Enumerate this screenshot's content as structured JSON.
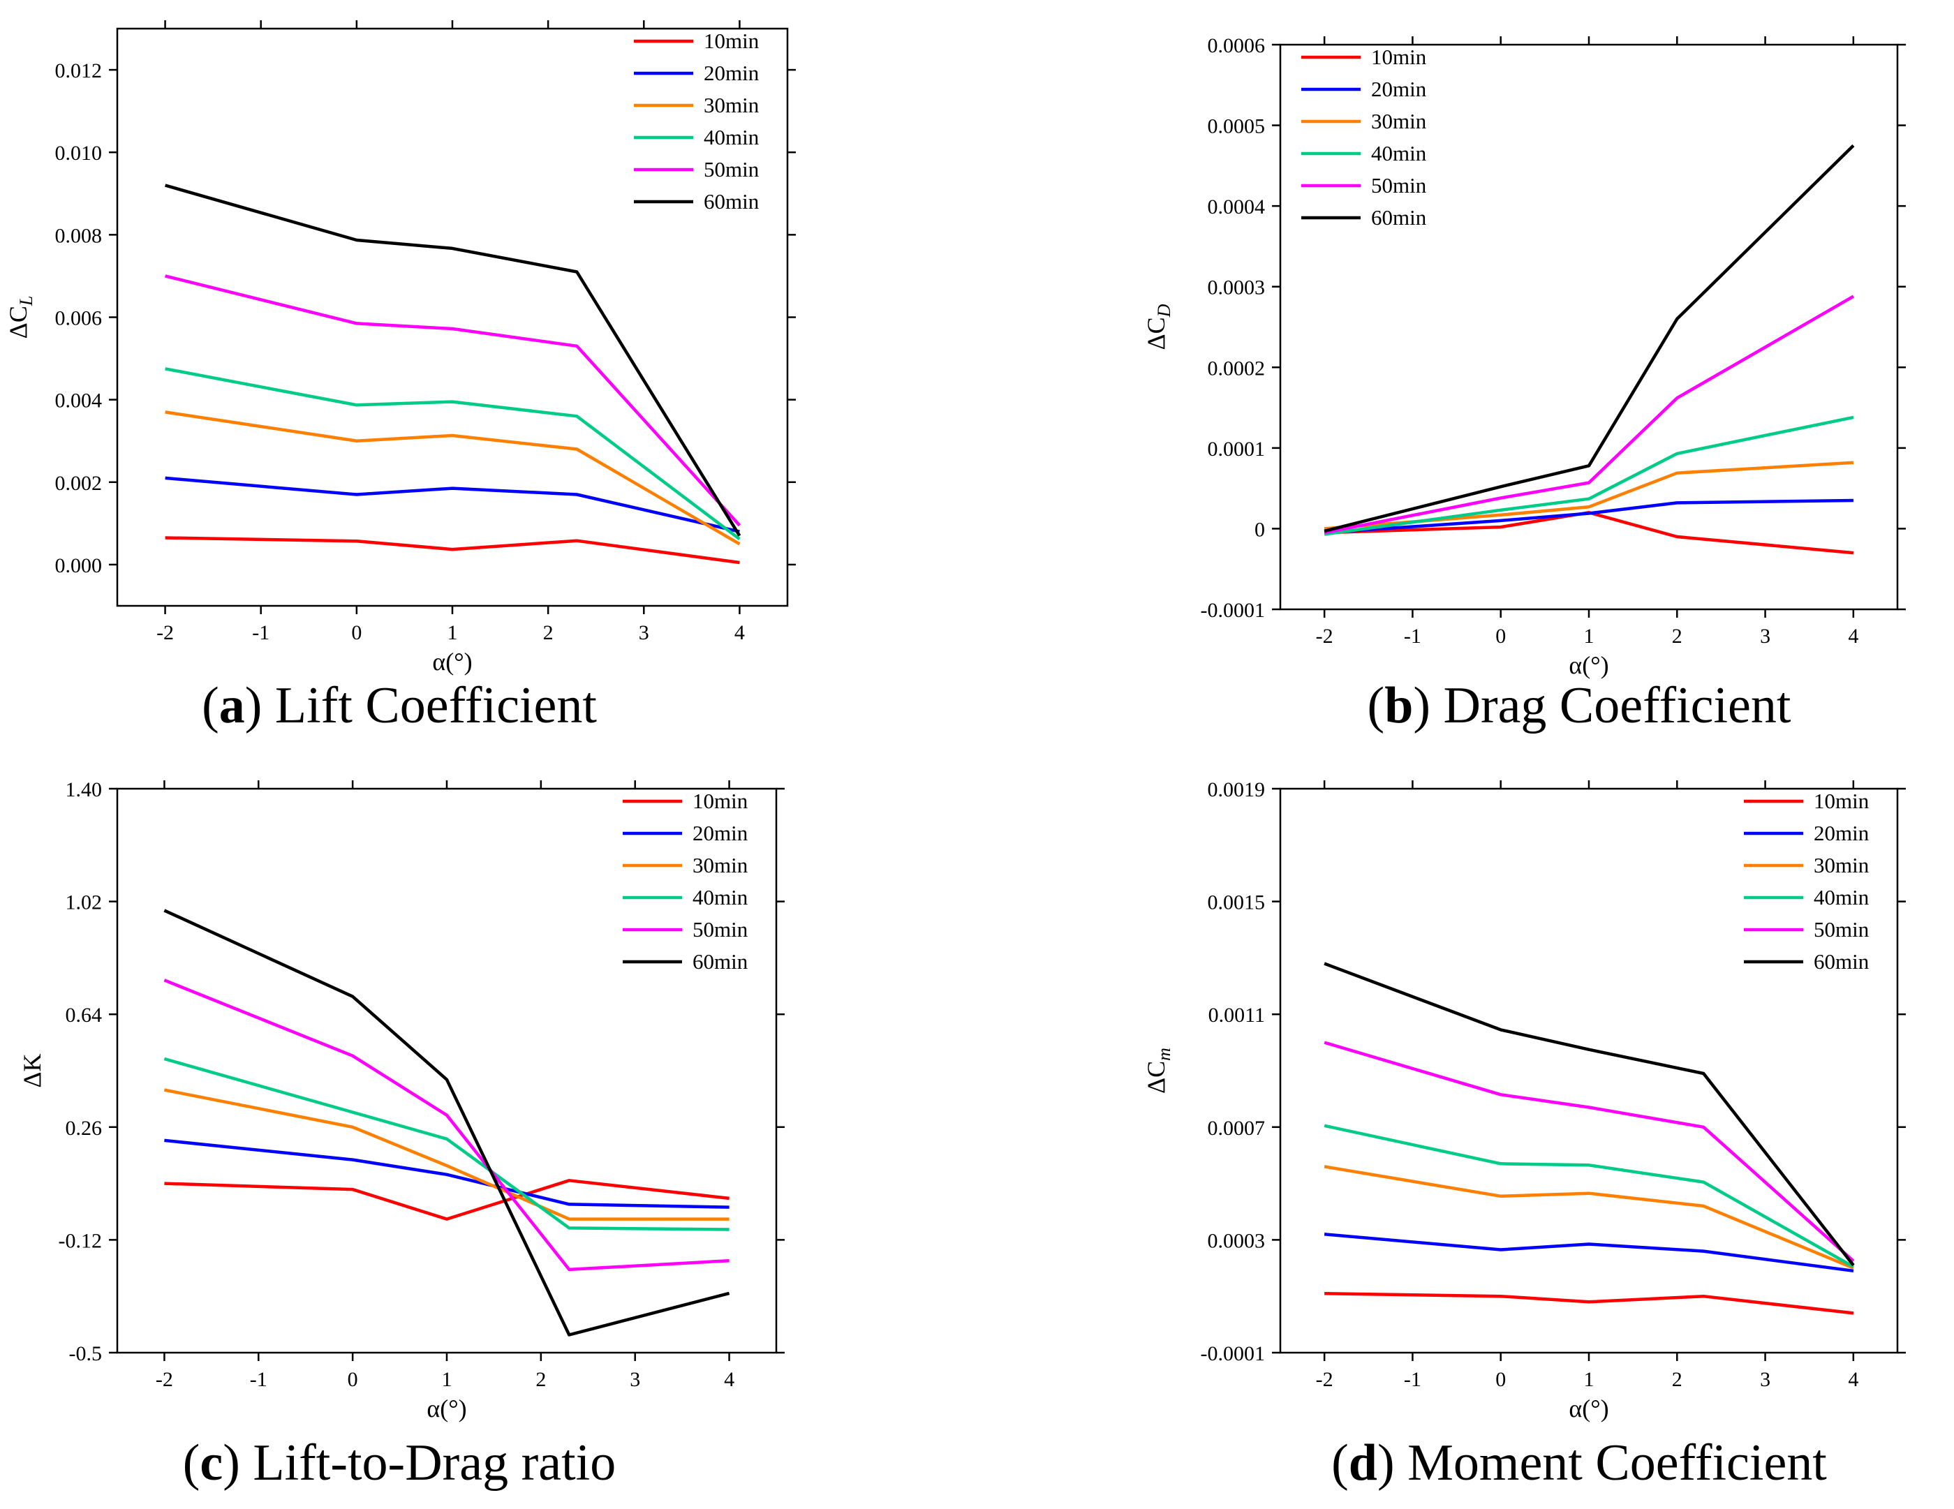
{
  "chart_data": [
    {
      "type": "line",
      "panel": "a",
      "caption": {
        "letter": "a",
        "text": "Lift Coefficient"
      },
      "xlabel": "α(°)",
      "ylabel": {
        "prefix": "ΔC",
        "sub": "L"
      },
      "xlim": [
        -2.5,
        4.5
      ],
      "ylim": [
        -0.001,
        0.013
      ],
      "xticks": [
        -2,
        -1,
        0,
        1,
        2,
        3,
        4
      ],
      "xtick_labels": [
        "-2",
        "-1",
        "0",
        "1",
        "2",
        "3",
        "4"
      ],
      "yticks": [
        0,
        0.002,
        0.004,
        0.006,
        0.008,
        0.01,
        0.012
      ],
      "ytick_labels": [
        "0.000",
        "0.002",
        "0.004",
        "0.006",
        "0.008",
        "0.010",
        "0.012"
      ],
      "legend_position": "top-right",
      "x": [
        -2,
        0,
        1,
        2.3,
        4
      ],
      "series": [
        {
          "name": "10min",
          "color": "#ff0000",
          "values": [
            0.00065,
            0.00057,
            0.00037,
            0.00058,
            5e-05
          ]
        },
        {
          "name": "20min",
          "color": "#0000ff",
          "values": [
            0.0021,
            0.0017,
            0.00185,
            0.0017,
            0.0008
          ]
        },
        {
          "name": "30min",
          "color": "#ff8000",
          "values": [
            0.0037,
            0.003,
            0.00313,
            0.0028,
            0.0005
          ]
        },
        {
          "name": "40min",
          "color": "#00cc88",
          "values": [
            0.00475,
            0.00387,
            0.00395,
            0.0036,
            0.00062
          ]
        },
        {
          "name": "50min",
          "color": "#ff00ff",
          "values": [
            0.007,
            0.00585,
            0.00572,
            0.0053,
            0.00095
          ]
        },
        {
          "name": "60min",
          "color": "#000000",
          "values": [
            0.0092,
            0.00787,
            0.00767,
            0.0071,
            0.0007
          ]
        }
      ]
    },
    {
      "type": "line",
      "panel": "b",
      "caption": {
        "letter": "b",
        "text": "Drag Coefficient"
      },
      "xlabel": "α(°)",
      "ylabel": {
        "prefix": "ΔC",
        "sub": "D"
      },
      "xlim": [
        -2.5,
        4.5
      ],
      "ylim": [
        -0.0001,
        0.0006
      ],
      "xticks": [
        -2,
        -1,
        0,
        1,
        2,
        3,
        4
      ],
      "xtick_labels": [
        "-2",
        "-1",
        "0",
        "1",
        "2",
        "3",
        "4"
      ],
      "yticks": [
        -0.0001,
        0,
        0.0001,
        0.0002,
        0.0003,
        0.0004,
        0.0005,
        0.0006
      ],
      "ytick_labels": [
        "-0.0001",
        "0",
        "0.0001",
        "0.0002",
        "0.0003",
        "0.0004",
        "0.0005",
        "0.0006"
      ],
      "legend_position": "top-left",
      "x": [
        -2,
        0,
        1,
        2,
        4
      ],
      "series": [
        {
          "name": "10min",
          "color": "#ff0000",
          "values": [
            -5e-06,
            2e-06,
            2e-05,
            -1e-05,
            -3e-05
          ]
        },
        {
          "name": "20min",
          "color": "#0000ff",
          "values": [
            -5e-06,
            1e-05,
            1.9e-05,
            3.2e-05,
            3.5e-05
          ]
        },
        {
          "name": "30min",
          "color": "#ff8000",
          "values": [
            0.0,
            1.7e-05,
            2.7e-05,
            6.9e-05,
            8.2e-05
          ]
        },
        {
          "name": "40min",
          "color": "#00cc88",
          "values": [
            -7e-06,
            2.3e-05,
            3.7e-05,
            9.3e-05,
            0.000138
          ]
        },
        {
          "name": "50min",
          "color": "#ff00ff",
          "values": [
            -5e-06,
            3.8e-05,
            5.7e-05,
            0.000162,
            0.000288
          ]
        },
        {
          "name": "60min",
          "color": "#000000",
          "values": [
            -3e-06,
            5.2e-05,
            7.8e-05,
            0.00026,
            0.000475
          ]
        }
      ]
    },
    {
      "type": "line",
      "panel": "c",
      "caption": {
        "letter": "c",
        "text": "Lift-to-Drag ratio"
      },
      "xlabel": "α(°)",
      "ylabel": {
        "prefix": "ΔK",
        "sub": ""
      },
      "xlim": [
        -2.5,
        4.5
      ],
      "ylim": [
        -0.5,
        1.4
      ],
      "xticks": [
        -2,
        -1,
        0,
        1,
        2,
        3,
        4
      ],
      "xtick_labels": [
        "-2",
        "-1",
        "0",
        "1",
        "2",
        "3",
        "4"
      ],
      "yticks": [
        -0.5,
        -0.12,
        0.26,
        0.64,
        1.02,
        1.4
      ],
      "ytick_labels": [
        "-0.5",
        "-0.12",
        "0.26",
        "0.64",
        "1.02",
        "1.40"
      ],
      "legend_position": "top-right",
      "x": [
        -2,
        0,
        1,
        2.3,
        4
      ],
      "series": [
        {
          "name": "10min",
          "color": "#ff0000",
          "values": [
            0.07,
            0.05,
            -0.05,
            0.08,
            0.02
          ]
        },
        {
          "name": "20min",
          "color": "#0000ff",
          "values": [
            0.215,
            0.15,
            0.1,
            0.0,
            -0.01
          ]
        },
        {
          "name": "30min",
          "color": "#ff8000",
          "values": [
            0.385,
            0.26,
            0.13,
            -0.05,
            -0.05
          ]
        },
        {
          "name": "40min",
          "color": "#00cc88",
          "values": [
            0.49,
            0.31,
            0.22,
            -0.08,
            -0.085
          ]
        },
        {
          "name": "50min",
          "color": "#ff00ff",
          "values": [
            0.755,
            0.5,
            0.3,
            -0.22,
            -0.19
          ]
        },
        {
          "name": "60min",
          "color": "#000000",
          "values": [
            0.99,
            0.7,
            0.42,
            -0.44,
            -0.3
          ]
        }
      ]
    },
    {
      "type": "line",
      "panel": "d",
      "caption": {
        "letter": "d",
        "text": "Moment Coefficient"
      },
      "xlabel": "α(°)",
      "ylabel": {
        "prefix": "ΔC",
        "sub": "m"
      },
      "xlim": [
        -2.5,
        4.5
      ],
      "ylim": [
        -0.0001,
        0.0019
      ],
      "xticks": [
        -2,
        -1,
        0,
        1,
        2,
        3,
        4
      ],
      "xtick_labels": [
        "-2",
        "-1",
        "0",
        "1",
        "2",
        "3",
        "4"
      ],
      "yticks": [
        -0.0001,
        0.0003,
        0.0007,
        0.0011,
        0.0015,
        0.0019
      ],
      "ytick_labels": [
        "-0.0001",
        "0.0003",
        "0.0007",
        "0.0011",
        "0.0015",
        "0.0019"
      ],
      "legend_position": "top-right",
      "x": [
        -2,
        0,
        1,
        2.3,
        4
      ],
      "series": [
        {
          "name": "10min",
          "color": "#ff0000",
          "values": [
            0.00011,
            0.0001,
            8e-05,
            0.0001,
            4e-05
          ]
        },
        {
          "name": "20min",
          "color": "#0000ff",
          "values": [
            0.00032,
            0.000265,
            0.000285,
            0.00026,
            0.00019
          ]
        },
        {
          "name": "30min",
          "color": "#ff8000",
          "values": [
            0.00056,
            0.000455,
            0.000465,
            0.00042,
            0.0002
          ]
        },
        {
          "name": "40min",
          "color": "#00cc88",
          "values": [
            0.000705,
            0.00057,
            0.000565,
            0.000505,
            0.000205
          ]
        },
        {
          "name": "50min",
          "color": "#ff00ff",
          "values": [
            0.001,
            0.000815,
            0.00077,
            0.0007,
            0.000225
          ]
        },
        {
          "name": "60min",
          "color": "#000000",
          "values": [
            0.00128,
            0.001045,
            0.000975,
            0.00089,
            0.00021
          ]
        }
      ]
    }
  ]
}
